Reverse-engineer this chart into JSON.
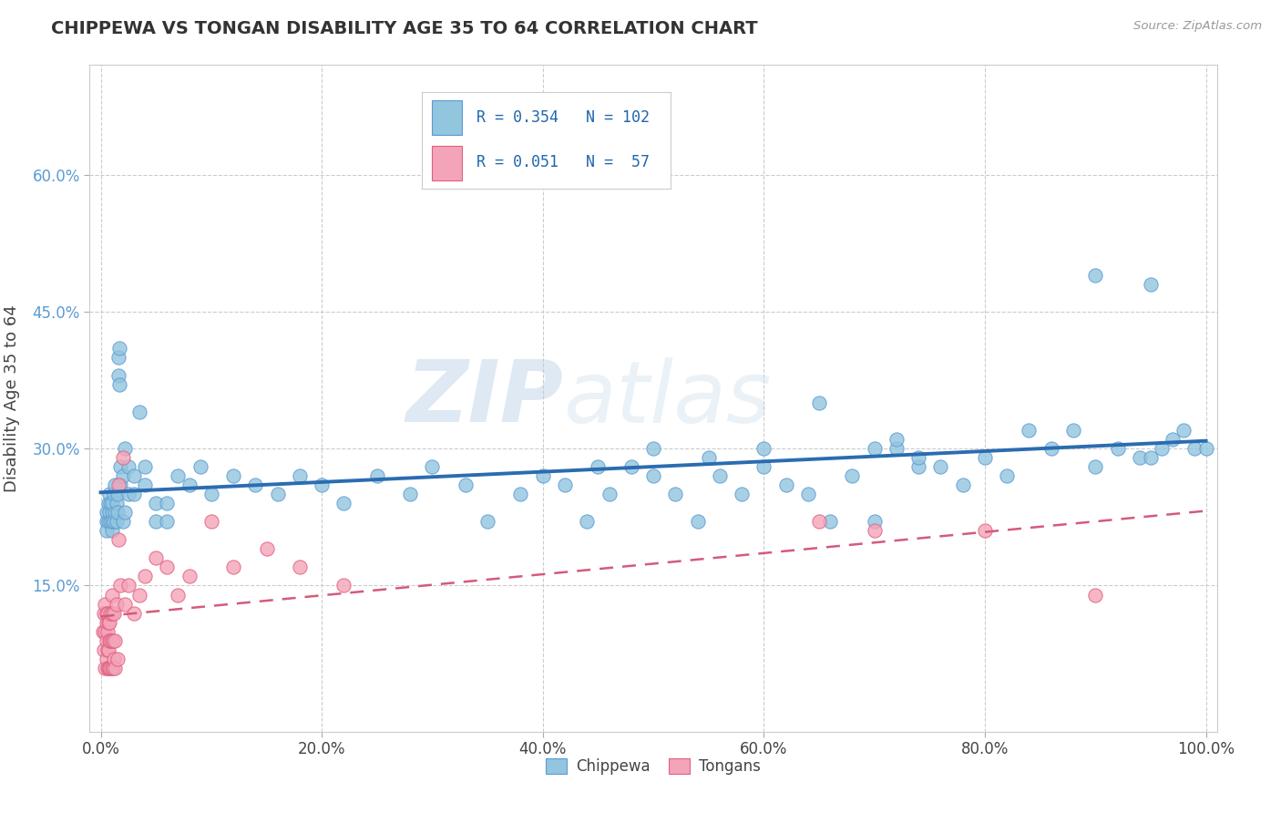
{
  "title": "CHIPPEWA VS TONGAN DISABILITY AGE 35 TO 64 CORRELATION CHART",
  "source": "Source: ZipAtlas.com",
  "ylabel": "Disability Age 35 to 64",
  "chippewa_R": 0.354,
  "chippewa_N": 102,
  "tongan_R": 0.051,
  "tongan_N": 57,
  "chippewa_color": "#92c5de",
  "tongan_color": "#f4a4b8",
  "chippewa_edge_color": "#5b9bd5",
  "tongan_edge_color": "#e06080",
  "trend_chippewa_color": "#2b6cb0",
  "trend_tongan_color": "#d45b7a",
  "background_color": "#ffffff",
  "grid_color": "#cccccc",
  "xlim": [
    -0.01,
    1.01
  ],
  "ylim": [
    -0.01,
    0.72
  ],
  "xtick_vals": [
    0.0,
    0.2,
    0.4,
    0.6,
    0.8,
    1.0
  ],
  "xtick_labels": [
    "0.0%",
    "20.0%",
    "40.0%",
    "60.0%",
    "80.0%",
    "100.0%"
  ],
  "ytick_vals": [
    0.15,
    0.3,
    0.45,
    0.6
  ],
  "ytick_labels": [
    "15.0%",
    "30.0%",
    "45.0%",
    "60.0%"
  ],
  "watermark_zip": "ZIP",
  "watermark_atlas": "atlas",
  "legend_chip_label": "Chippewa",
  "legend_tong_label": "Tongans",
  "chippewa_x": [
    0.005,
    0.005,
    0.005,
    0.007,
    0.007,
    0.008,
    0.008,
    0.009,
    0.009,
    0.01,
    0.01,
    0.01,
    0.01,
    0.012,
    0.012,
    0.013,
    0.013,
    0.014,
    0.014,
    0.015,
    0.015,
    0.016,
    0.016,
    0.017,
    0.017,
    0.018,
    0.018,
    0.02,
    0.02,
    0.022,
    0.022,
    0.025,
    0.025,
    0.03,
    0.03,
    0.035,
    0.04,
    0.04,
    0.05,
    0.05,
    0.06,
    0.06,
    0.07,
    0.08,
    0.09,
    0.1,
    0.12,
    0.14,
    0.16,
    0.18,
    0.2,
    0.22,
    0.25,
    0.28,
    0.3,
    0.33,
    0.35,
    0.38,
    0.4,
    0.42,
    0.44,
    0.46,
    0.48,
    0.5,
    0.52,
    0.54,
    0.56,
    0.58,
    0.6,
    0.62,
    0.64,
    0.66,
    0.68,
    0.7,
    0.72,
    0.74,
    0.76,
    0.78,
    0.8,
    0.82,
    0.84,
    0.86,
    0.88,
    0.9,
    0.92,
    0.94,
    0.95,
    0.96,
    0.97,
    0.98,
    0.99,
    1.0,
    0.45,
    0.5,
    0.55,
    0.6,
    0.65,
    0.7,
    0.72,
    0.74,
    0.9,
    0.95
  ],
  "chippewa_y": [
    0.22,
    0.23,
    0.21,
    0.22,
    0.24,
    0.23,
    0.25,
    0.22,
    0.24,
    0.21,
    0.23,
    0.22,
    0.24,
    0.22,
    0.25,
    0.23,
    0.26,
    0.22,
    0.24,
    0.23,
    0.25,
    0.4,
    0.38,
    0.41,
    0.37,
    0.26,
    0.28,
    0.22,
    0.27,
    0.23,
    0.3,
    0.25,
    0.28,
    0.27,
    0.25,
    0.34,
    0.28,
    0.26,
    0.22,
    0.24,
    0.22,
    0.24,
    0.27,
    0.26,
    0.28,
    0.25,
    0.27,
    0.26,
    0.25,
    0.27,
    0.26,
    0.24,
    0.27,
    0.25,
    0.28,
    0.26,
    0.22,
    0.25,
    0.27,
    0.26,
    0.22,
    0.25,
    0.28,
    0.27,
    0.25,
    0.22,
    0.27,
    0.25,
    0.28,
    0.26,
    0.25,
    0.22,
    0.27,
    0.22,
    0.3,
    0.28,
    0.28,
    0.26,
    0.29,
    0.27,
    0.32,
    0.3,
    0.32,
    0.28,
    0.3,
    0.29,
    0.29,
    0.3,
    0.31,
    0.32,
    0.3,
    0.3,
    0.28,
    0.3,
    0.29,
    0.3,
    0.35,
    0.3,
    0.31,
    0.29,
    0.49,
    0.48
  ],
  "tongan_x": [
    0.002,
    0.003,
    0.003,
    0.004,
    0.004,
    0.004,
    0.005,
    0.005,
    0.005,
    0.005,
    0.006,
    0.006,
    0.006,
    0.006,
    0.007,
    0.007,
    0.007,
    0.008,
    0.008,
    0.008,
    0.009,
    0.009,
    0.009,
    0.01,
    0.01,
    0.01,
    0.01,
    0.011,
    0.011,
    0.012,
    0.012,
    0.013,
    0.013,
    0.014,
    0.015,
    0.016,
    0.016,
    0.018,
    0.02,
    0.022,
    0.025,
    0.03,
    0.035,
    0.04,
    0.05,
    0.06,
    0.07,
    0.08,
    0.1,
    0.12,
    0.15,
    0.18,
    0.22,
    0.65,
    0.7,
    0.8,
    0.9
  ],
  "tongan_y": [
    0.1,
    0.08,
    0.12,
    0.06,
    0.1,
    0.13,
    0.07,
    0.09,
    0.11,
    0.12,
    0.06,
    0.08,
    0.1,
    0.12,
    0.06,
    0.08,
    0.11,
    0.06,
    0.09,
    0.11,
    0.06,
    0.09,
    0.12,
    0.06,
    0.09,
    0.12,
    0.14,
    0.06,
    0.09,
    0.07,
    0.12,
    0.06,
    0.09,
    0.13,
    0.07,
    0.2,
    0.26,
    0.15,
    0.29,
    0.13,
    0.15,
    0.12,
    0.14,
    0.16,
    0.18,
    0.17,
    0.14,
    0.16,
    0.22,
    0.17,
    0.19,
    0.17,
    0.15,
    0.22,
    0.21,
    0.21,
    0.14
  ]
}
